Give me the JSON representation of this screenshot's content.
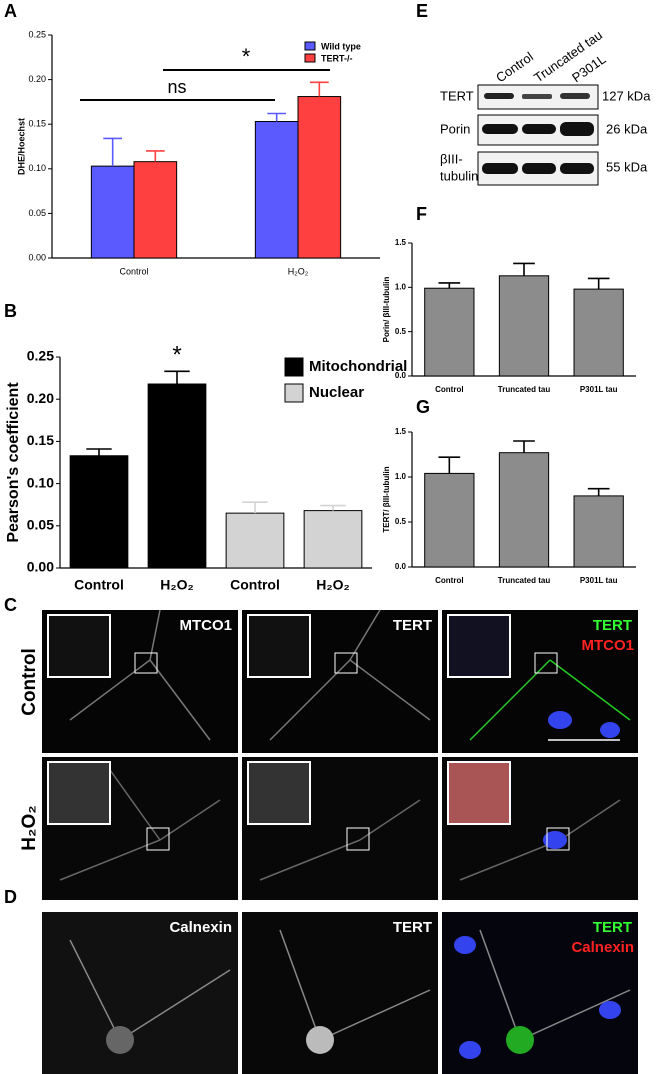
{
  "chart_data": [
    {
      "type": "bar",
      "y_label": "DHE/Hoechst",
      "categories": [
        "Control",
        "H₂O₂"
      ],
      "series": [
        {
          "name": "Wild type",
          "color": "#5a5aff",
          "values": [
            0.103,
            0.153
          ],
          "errors": [
            0.031,
            0.009
          ]
        },
        {
          "name": "TERT-/-",
          "color": "#ff4040",
          "values": [
            0.108,
            0.181
          ],
          "errors": [
            0.012,
            0.016
          ]
        }
      ],
      "ylim": [
        0,
        0.25
      ],
      "yticks": [
        {
          "value": 0,
          "label": "0.00"
        },
        0.05,
        {
          "value": 0.1,
          "label": "0.10"
        },
        0.15,
        {
          "value": 0.2,
          "label": "0.20"
        },
        0.25
      ],
      "legend": "upper right",
      "annotations": [
        "ns",
        "*"
      ]
    },
    {
      "type": "bar",
      "y_label": "Pearson's coefficient",
      "categories": [
        "Control",
        "H₂O₂",
        "Control",
        "H₂O₂"
      ],
      "series": [
        {
          "name": "Mitochondrial",
          "color": "#000000",
          "values": [
            0.133,
            0.218,
            null,
            null
          ],
          "errors": [
            0.008,
            0.015,
            null,
            null
          ]
        },
        {
          "name": "Nuclear",
          "color": "#d3d3d3",
          "values": [
            null,
            null,
            0.065,
            0.068
          ],
          "errors": [
            null,
            null,
            0.013,
            0.006
          ]
        }
      ],
      "ylim": [
        0,
        0.25
      ],
      "yticks": [
        {
          "value": 0,
          "label": "0.00"
        },
        0.05,
        {
          "value": 0.1,
          "label": "0.10"
        },
        0.15,
        {
          "value": 0.2,
          "label": "0.20"
        },
        0.25
      ],
      "legend": "upper right",
      "annotations": [
        "*"
      ]
    },
    {
      "type": "bar",
      "y_label": "Porin/ βIII-tubulin",
      "categories": [
        "Control",
        "Truncated tau",
        "P301L tau"
      ],
      "series": [
        {
          "color": "#8c8c8c",
          "values": [
            0.99,
            1.13,
            0.98
          ],
          "errors": [
            0.06,
            0.14,
            0.12
          ]
        }
      ],
      "ylim": [
        0,
        1.5
      ],
      "yticks": [
        {
          "value": 0,
          "label": "0.0"
        },
        0.5,
        {
          "value": 1,
          "label": "1.0"
        },
        1.5
      ]
    },
    {
      "type": "bar",
      "y_label": "TERT/ βIII-tubulin",
      "categories": [
        "Control",
        "Truncated tau",
        "P301L tau"
      ],
      "series": [
        {
          "color": "#8c8c8c",
          "values": [
            1.04,
            1.27,
            0.79
          ],
          "errors": [
            0.18,
            0.13,
            0.08
          ]
        }
      ],
      "ylim": [
        0,
        1.5
      ],
      "yticks": [
        {
          "value": 0,
          "label": "0.0"
        },
        0.5,
        {
          "value": 1,
          "label": "1.0"
        },
        1.5
      ]
    }
  ],
  "figure": {
    "panel_labels": [
      "A",
      "B",
      "C",
      "D",
      "E",
      "F",
      "G"
    ],
    "blot": {
      "lanes": [
        "Control",
        "Truncated tau",
        "P301L"
      ],
      "rows": [
        {
          "label": [
            "TERT"
          ],
          "size": "127 kDa"
        },
        {
          "label": [
            "Porin"
          ],
          "size": "26 kDa"
        },
        {
          "label": [
            "βIII-",
            "tubulin"
          ],
          "size": "55 kDa"
        }
      ]
    },
    "micrographs": {
      "C_rows": [
        "Control",
        "H₂O₂"
      ],
      "C_captions": [
        "MTCO1",
        "TERT"
      ],
      "C_merge": [
        "TERT",
        "MTCO1"
      ],
      "D_captions": [
        "Calnexin",
        "TERT"
      ],
      "D_merge": [
        "TERT",
        "Calnexin"
      ]
    }
  }
}
